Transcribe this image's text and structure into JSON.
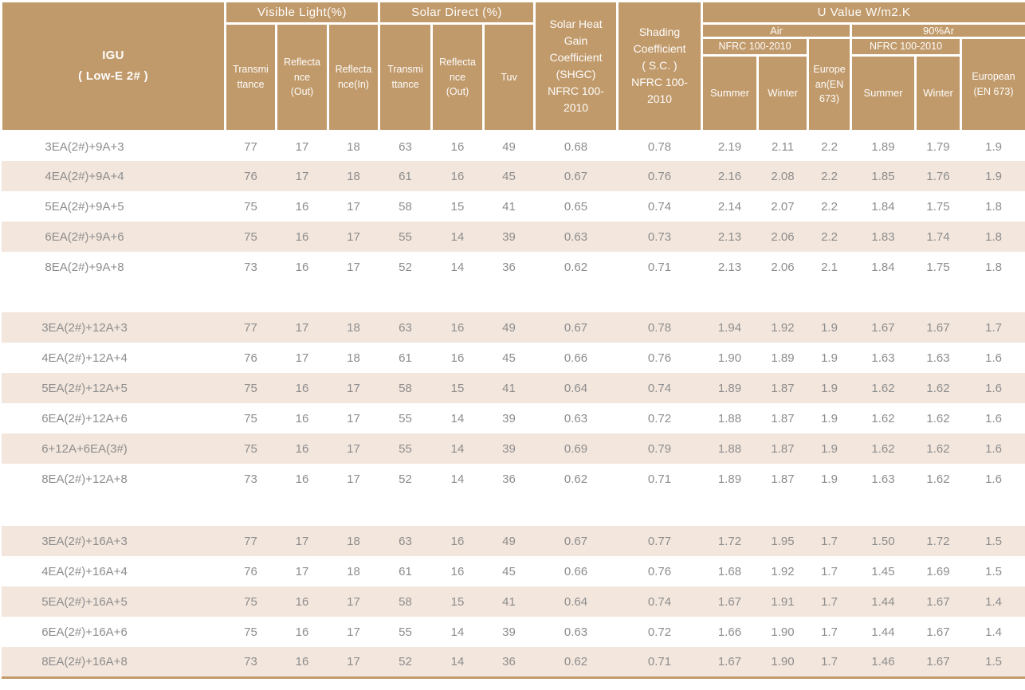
{
  "header": {
    "igu": "IGU\n( Low-E 2# )",
    "visible_light": "Visible Light(%)",
    "solar_direct": "Solar Direct (%)",
    "vl_transmittance": "Transmi\nttance",
    "vl_reflectance_out": "Reflecta\nnce\n(Out)",
    "vl_reflectance_in": "Reflecta\nnce(In)",
    "sd_transmittance": "Transmi\nttance",
    "sd_reflectance_out": "Reflecta\nnce\n(Out)",
    "tuv": "Tuv",
    "shgc": "Solar Heat\nGain\nCoefficient\n(SHGC)\nNFRC 100-\n2010",
    "shading_coefficient": "Shading\nCoefficient\n( S.C. )\nNFRC 100-\n2010",
    "u_value": "U Value W/m2.K",
    "air": "Air",
    "argon": "90%Ar",
    "nfrc_air": "NFRC 100-2010",
    "nfrc_argon": "NFRC 100-2010",
    "air_summer": "Summer",
    "air_winter": "Winter",
    "air_european": "Europe\nan(EN\n673)",
    "argon_summer": "Summer",
    "argon_winter": "Winter",
    "argon_european": "European\n(EN 673)"
  },
  "column_keys": [
    "vl_transmittance",
    "vl_reflectance_out",
    "vl_reflectance_in",
    "sd_transmittance",
    "sd_reflectance_out",
    "tuv",
    "shgc",
    "shading_coefficient",
    "air_summer",
    "air_winter",
    "air_european",
    "argon_summer",
    "argon_winter",
    "argon_european"
  ],
  "groups": [
    {
      "rows": [
        {
          "igu": "3EA(2#)+9A+3",
          "shaded": false,
          "values": [
            "77",
            "17",
            "18",
            "63",
            "16",
            "49",
            "0.68",
            "0.78",
            "2.19",
            "2.11",
            "2.2",
            "1.89",
            "1.79",
            "1.9"
          ]
        },
        {
          "igu": "4EA(2#)+9A+4",
          "shaded": true,
          "values": [
            "76",
            "17",
            "18",
            "61",
            "16",
            "45",
            "0.67",
            "0.76",
            "2.16",
            "2.08",
            "2.2",
            "1.85",
            "1.76",
            "1.9"
          ]
        },
        {
          "igu": "5EA(2#)+9A+5",
          "shaded": false,
          "values": [
            "75",
            "16",
            "17",
            "58",
            "15",
            "41",
            "0.65",
            "0.74",
            "2.14",
            "2.07",
            "2.2",
            "1.84",
            "1.75",
            "1.8"
          ]
        },
        {
          "igu": "6EA(2#)+9A+6",
          "shaded": true,
          "values": [
            "75",
            "16",
            "17",
            "55",
            "14",
            "39",
            "0.63",
            "0.73",
            "2.13",
            "2.06",
            "2.2",
            "1.83",
            "1.74",
            "1.8"
          ]
        },
        {
          "igu": "8EA(2#)+9A+8",
          "shaded": false,
          "values": [
            "73",
            "16",
            "17",
            "52",
            "14",
            "36",
            "0.62",
            "0.71",
            "2.13",
            "2.06",
            "2.1",
            "1.84",
            "1.75",
            "1.8"
          ]
        }
      ]
    },
    {
      "rows": [
        {
          "igu": "3EA(2#)+12A+3",
          "shaded": true,
          "values": [
            "77",
            "17",
            "18",
            "63",
            "16",
            "49",
            "0.67",
            "0.78",
            "1.94",
            "1.92",
            "1.9",
            "1.67",
            "1.67",
            "1.7"
          ]
        },
        {
          "igu": "4EA(2#)+12A+4",
          "shaded": false,
          "values": [
            "76",
            "17",
            "18",
            "61",
            "16",
            "45",
            "0.66",
            "0.76",
            "1.90",
            "1.89",
            "1.9",
            "1.63",
            "1.63",
            "1.6"
          ]
        },
        {
          "igu": "5EA(2#)+12A+5",
          "shaded": true,
          "values": [
            "75",
            "16",
            "17",
            "58",
            "15",
            "41",
            "0.64",
            "0.74",
            "1.89",
            "1.87",
            "1.9",
            "1.62",
            "1.62",
            "1.6"
          ]
        },
        {
          "igu": "6EA(2#)+12A+6",
          "shaded": false,
          "values": [
            "75",
            "16",
            "17",
            "55",
            "14",
            "39",
            "0.63",
            "0.72",
            "1.88",
            "1.87",
            "1.9",
            "1.62",
            "1.62",
            "1.6"
          ]
        },
        {
          "igu": "6+12A+6EA(3#)",
          "shaded": true,
          "values": [
            "75",
            "16",
            "17",
            "55",
            "14",
            "39",
            "0.69",
            "0.79",
            "1.88",
            "1.87",
            "1.9",
            "1.62",
            "1.62",
            "1.6"
          ]
        },
        {
          "igu": "8EA(2#)+12A+8",
          "shaded": false,
          "values": [
            "73",
            "16",
            "17",
            "52",
            "14",
            "36",
            "0.62",
            "0.71",
            "1.89",
            "1.87",
            "1.9",
            "1.63",
            "1.62",
            "1.6"
          ]
        }
      ]
    },
    {
      "rows": [
        {
          "igu": "3EA(2#)+16A+3",
          "shaded": true,
          "values": [
            "77",
            "17",
            "18",
            "63",
            "16",
            "49",
            "0.67",
            "0.77",
            "1.72",
            "1.95",
            "1.7",
            "1.50",
            "1.72",
            "1.5"
          ]
        },
        {
          "igu": "4EA(2#)+16A+4",
          "shaded": false,
          "values": [
            "76",
            "17",
            "18",
            "61",
            "16",
            "45",
            "0.66",
            "0.76",
            "1.68",
            "1.92",
            "1.7",
            "1.45",
            "1.69",
            "1.5"
          ]
        },
        {
          "igu": "5EA(2#)+16A+5",
          "shaded": true,
          "values": [
            "75",
            "16",
            "17",
            "58",
            "15",
            "41",
            "0.64",
            "0.74",
            "1.67",
            "1.91",
            "1.7",
            "1.44",
            "1.67",
            "1.4"
          ]
        },
        {
          "igu": "6EA(2#)+16A+6",
          "shaded": false,
          "values": [
            "75",
            "16",
            "17",
            "55",
            "14",
            "39",
            "0.63",
            "0.72",
            "1.66",
            "1.90",
            "1.7",
            "1.44",
            "1.67",
            "1.4"
          ]
        },
        {
          "igu": "8EA(2#)+16A+8",
          "shaded": true,
          "values": [
            "73",
            "16",
            "17",
            "52",
            "14",
            "36",
            "0.62",
            "0.71",
            "1.67",
            "1.90",
            "1.7",
            "1.46",
            "1.67",
            "1.5"
          ]
        }
      ]
    }
  ],
  "colors": {
    "header_bg": "#C19A6B",
    "row_shade": "#F3E6DD",
    "data_text": "#8D8D8D",
    "header_text": "#FFFFFF",
    "bottom_rule": "#C19A6B"
  }
}
